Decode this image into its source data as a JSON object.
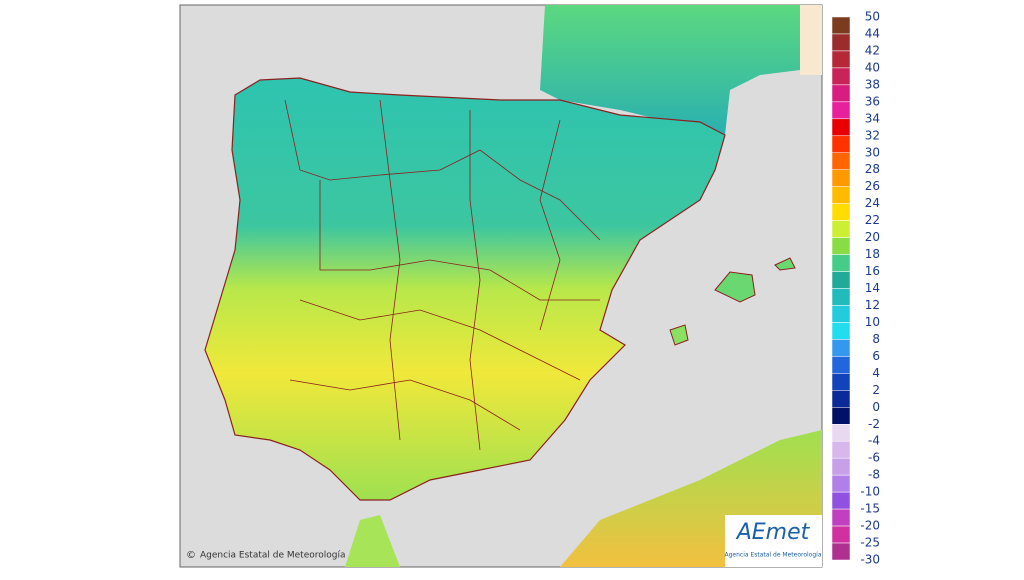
{
  "map": {
    "copyright": "Agencia Estatal de Meteorología",
    "logo": {
      "brand": "AEmet",
      "subtitle": "Agencia Estatal de Meteorología"
    }
  },
  "legend": {
    "labels": [
      "50",
      "44",
      "42",
      "40",
      "38",
      "36",
      "34",
      "32",
      "30",
      "28",
      "26",
      "24",
      "22",
      "20",
      "18",
      "16",
      "14",
      "12",
      "10",
      "8",
      "6",
      "4",
      "2",
      "0",
      "-2",
      "-4",
      "-6",
      "-8",
      "-10",
      "-15",
      "-20",
      "-25",
      "-30"
    ],
    "colors": [
      "#7a3b1f",
      "#9c2b2b",
      "#b52838",
      "#c8245a",
      "#d81c80",
      "#e8209c",
      "#e80000",
      "#ff3300",
      "#ff6600",
      "#ff9900",
      "#ffbb00",
      "#ffdd00",
      "#ccee33",
      "#88dd44",
      "#44cc88",
      "#22aa99",
      "#22bbbb",
      "#22ccdd",
      "#22ddee",
      "#3399ee",
      "#2266dd",
      "#1144bb",
      "#0a2a99",
      "#001166",
      "#e8d8f0",
      "#d8b8ec",
      "#c8a0e8",
      "#b080e8",
      "#9050e0",
      "#c040c0",
      "#d030a0",
      "#b03090"
    ]
  }
}
